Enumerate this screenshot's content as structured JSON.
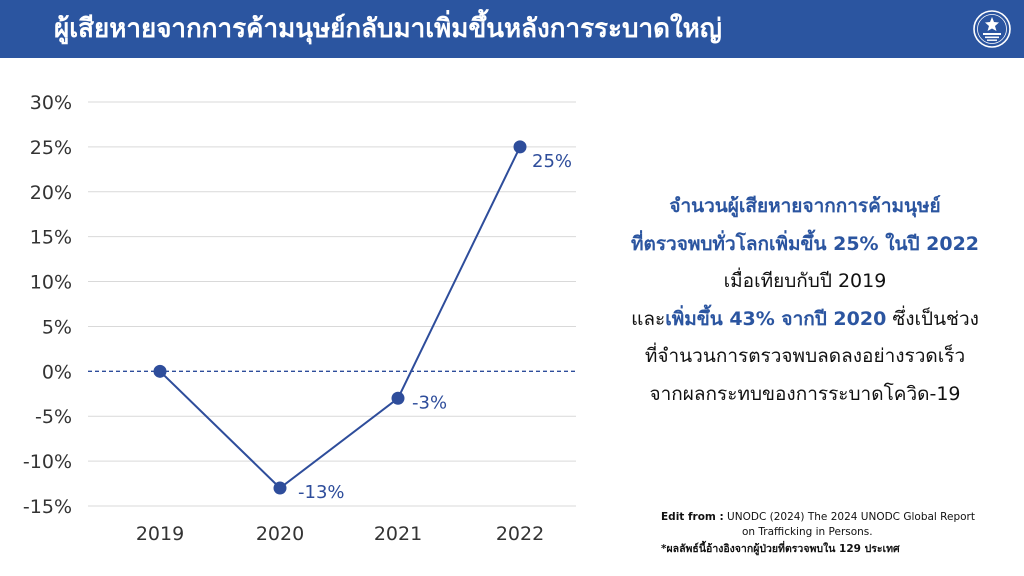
{
  "header": {
    "title": "ผู้เสียหายจากการค้ามนุษย์กลับมาเพิ่มขึ้นหลังการระบาดใหญ่"
  },
  "colors": {
    "brand": "#2b55a0",
    "line": "#2e4d9b",
    "grid": "#d9d9d9",
    "axis_text": "#333333"
  },
  "icons": {
    "emblem": "government-seal-icon"
  },
  "chart_data": {
    "type": "line",
    "categories": [
      "2019",
      "2020",
      "2021",
      "2022"
    ],
    "series": [
      {
        "values": [
          0,
          -13,
          -3,
          25
        ]
      }
    ],
    "data_labels": [
      "",
      "-13%",
      "-3%",
      "25%"
    ],
    "y_ticks": [
      "30%",
      "25%",
      "20%",
      "15%",
      "10%",
      "5%",
      "0%",
      "-5%",
      "-10%",
      "-15%"
    ],
    "ylim": [
      -15,
      30
    ],
    "ystep": 5,
    "grid": true,
    "zero_line": "dashed",
    "legend": "none"
  },
  "description": {
    "l1": "จำนวนผู้เสียหายจากการค้ามนุษย์",
    "l2": "ที่ตรวจพบทั่วโลกเพิ่มขึ้น 25% ในปี 2022",
    "l3": "เมื่อเทียบกับปี 2019",
    "l4a": "และ",
    "l4b": "เพิ่มขึ้น 43% จากปี 2020",
    "l4c": " ซึ่งเป็นช่วง",
    "l5": "ที่จำนวนการตรวจพบลดลงอย่างรวดเร็ว",
    "l6": "จากผลกระทบของการระบาดโควิด-19"
  },
  "source": {
    "label": "Edit from :",
    "text1": " UNODC (2024) The 2024 UNODC Global Report",
    "text2": "on Trafficking in Persons.",
    "note": "*ผลลัพธ์นี้อ้างอิงจากผู้ป่วยที่ตรวจพบใน 129 ประเทศ"
  }
}
